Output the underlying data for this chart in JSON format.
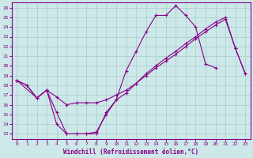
{
  "xlabel": "Windchill (Refroidissement éolien,°C)",
  "bg_color": "#cce8e8",
  "grid_color": "#aacccc",
  "line_color": "#880088",
  "marker": "+",
  "x_ticks": [
    0,
    1,
    2,
    3,
    4,
    5,
    6,
    7,
    8,
    9,
    10,
    11,
    12,
    13,
    14,
    15,
    16,
    17,
    18,
    19,
    20,
    21,
    22,
    23
  ],
  "y_ticks": [
    13,
    14,
    15,
    16,
    17,
    18,
    19,
    20,
    21,
    22,
    23,
    24,
    25,
    26
  ],
  "ylim": [
    12.5,
    26.5
  ],
  "xlim": [
    -0.5,
    23.5
  ],
  "line1_x": [
    0,
    1,
    2,
    3,
    4,
    5,
    6,
    7,
    8,
    9,
    10,
    11,
    12,
    13,
    14,
    15,
    16,
    17,
    18,
    19,
    20
  ],
  "line1_y": [
    18.5,
    18.0,
    16.7,
    17.5,
    14.0,
    13.0,
    13.0,
    13.0,
    13.0,
    15.2,
    16.5,
    19.5,
    21.5,
    23.5,
    25.2,
    25.2,
    26.2,
    25.2,
    24.0,
    20.2,
    19.8
  ],
  "line2_x": [
    0,
    2,
    3,
    4,
    5,
    6,
    7,
    8,
    9,
    10,
    11,
    12,
    13,
    14,
    15,
    16,
    17,
    18,
    19,
    20,
    21,
    22,
    23
  ],
  "line2_y": [
    18.5,
    16.7,
    17.5,
    16.8,
    16.0,
    16.2,
    16.2,
    16.2,
    16.5,
    17.0,
    17.5,
    18.2,
    19.0,
    19.8,
    20.5,
    21.2,
    22.0,
    22.8,
    23.5,
    24.2,
    24.8,
    21.8,
    19.2
  ],
  "line3_x": [
    0,
    1,
    2,
    3,
    4,
    5,
    6,
    7,
    8,
    9,
    10,
    11,
    12,
    13,
    14,
    15,
    16,
    17,
    18,
    19,
    20,
    21,
    22,
    23
  ],
  "line3_y": [
    18.5,
    18.0,
    16.7,
    17.5,
    15.2,
    13.0,
    13.0,
    13.0,
    13.2,
    15.0,
    16.5,
    17.2,
    18.2,
    19.2,
    20.0,
    20.8,
    21.5,
    22.3,
    23.0,
    23.8,
    24.5,
    25.0,
    21.8,
    19.2
  ]
}
